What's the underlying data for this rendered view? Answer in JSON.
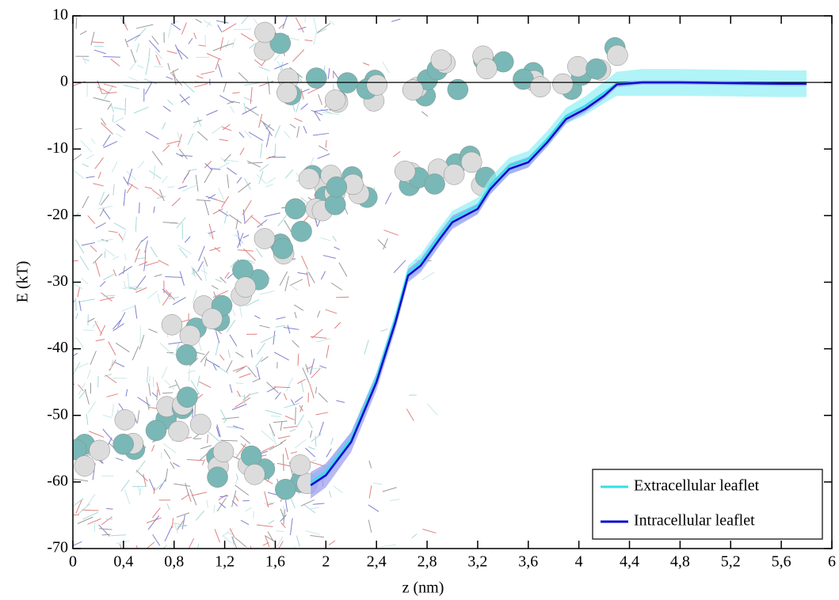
{
  "chart_data": {
    "type": "line",
    "x_label": "z (nm)",
    "y_label": "E (kT)",
    "xlim": [
      0,
      6
    ],
    "xticks": [
      0,
      {
        "value": 0.4,
        "label": "0,4"
      },
      {
        "value": 0.8,
        "label": "0,8"
      },
      {
        "value": 1.2,
        "label": "1,2"
      },
      {
        "value": 1.6,
        "label": "1,6"
      },
      2,
      {
        "value": 2.4,
        "label": "2,4"
      },
      {
        "value": 2.8,
        "label": "2,8"
      },
      {
        "value": 3.2,
        "label": "3,2"
      },
      {
        "value": 3.6,
        "label": "3,6"
      },
      4,
      {
        "value": 4.4,
        "label": "4,4"
      },
      {
        "value": 4.8,
        "label": "4,8"
      },
      {
        "value": 5.2,
        "label": "5,2"
      },
      {
        "value": 5.6,
        "label": "5,6"
      },
      6
    ],
    "ylim": [
      -70,
      10
    ],
    "yticks": [
      -70,
      -60,
      -50,
      -40,
      -30,
      -20,
      -10,
      0,
      10
    ],
    "reference_line": 0,
    "legend": "bottom-right",
    "x": [
      1.88,
      2.0,
      2.2,
      2.4,
      2.55,
      2.65,
      2.75,
      2.9,
      3.0,
      3.2,
      3.3,
      3.45,
      3.6,
      3.75,
      3.9,
      4.05,
      4.2,
      4.3,
      4.5,
      4.8,
      5.2,
      5.6,
      5.8
    ],
    "series": [
      {
        "name": "Extracellular leaflet",
        "color": "#33e0e8",
        "band_color": "#8ff0f5",
        "values": [
          -60,
          -58.5,
          -53.5,
          -44.5,
          -35.5,
          -28.5,
          -27,
          -23,
          -20.5,
          -18.5,
          -15.5,
          -12.5,
          -11.5,
          -8.5,
          -5,
          -3.5,
          -1.5,
          -0.2,
          0,
          0,
          -0.1,
          -0.2,
          -0.2
        ],
        "errors": [
          1,
          1,
          1,
          1,
          1,
          1,
          1.2,
          1.2,
          1.2,
          1.2,
          1.2,
          1.2,
          1.2,
          1.2,
          1.2,
          1.4,
          1.6,
          1.8,
          2,
          2,
          2,
          2,
          2
        ]
      },
      {
        "name": "Intracellular leaflet",
        "color": "#0a0ad0",
        "band_color": "#9a9af0",
        "values": [
          -60.5,
          -59,
          -54,
          -45,
          -36,
          -29,
          -27.5,
          -23.5,
          -21,
          -19,
          -16,
          -13,
          -12,
          -9,
          -5.5,
          -4,
          -2,
          -0.3,
          0,
          0,
          -0.1,
          -0.2,
          -0.2
        ],
        "errors": [
          2,
          1.8,
          1.5,
          1.2,
          1.1,
          1,
          1,
          1,
          1,
          0.8,
          0.8,
          0.8,
          0.8,
          0.6,
          0.6,
          0.5,
          0.5,
          0.4,
          0.3,
          0.3,
          0.3,
          0.3,
          0.3
        ]
      }
    ]
  }
}
